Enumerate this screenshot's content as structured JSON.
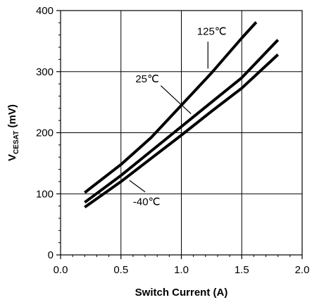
{
  "chart_data": {
    "type": "line",
    "title": "",
    "xlabel": "Switch Current (A)",
    "ylabel_main": "V",
    "ylabel_sub": "CESAT",
    "ylabel_unit": " (mV)",
    "xlim": [
      0,
      2.0
    ],
    "ylim": [
      0,
      400
    ],
    "xticks": [
      "0.0",
      "0.5",
      "1.0",
      "1.5",
      "2.0"
    ],
    "yticks": [
      "0",
      "100",
      "200",
      "300",
      "400"
    ],
    "grid": true,
    "series": [
      {
        "name": "125℃",
        "x": [
          0.2,
          0.5,
          0.75,
          1.0,
          1.25,
          1.5,
          1.62
        ],
        "y": [
          102,
          148,
          192,
          245,
          298,
          355,
          381
        ]
      },
      {
        "name": "25℃",
        "x": [
          0.2,
          0.5,
          0.75,
          1.0,
          1.25,
          1.5,
          1.8
        ],
        "y": [
          86,
          130,
          170,
          210,
          250,
          290,
          352
        ]
      },
      {
        "name": "-40℃",
        "x": [
          0.2,
          0.5,
          0.75,
          1.0,
          1.25,
          1.5,
          1.8
        ],
        "y": [
          78,
          120,
          158,
          196,
          235,
          273,
          328
        ]
      }
    ]
  }
}
